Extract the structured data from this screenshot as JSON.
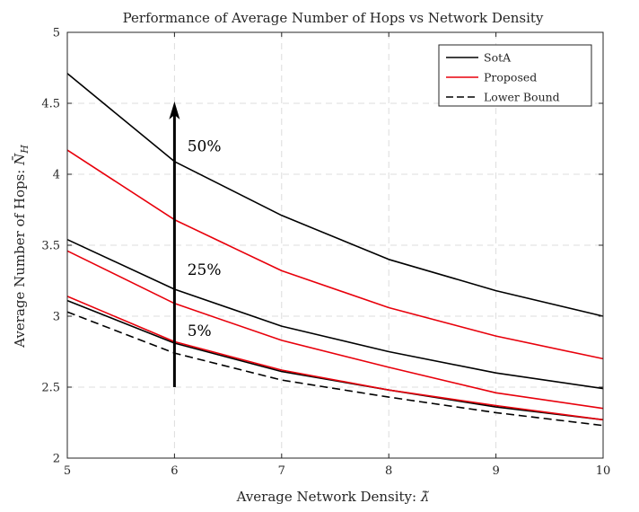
{
  "chart_data": {
    "type": "line",
    "title": "Performance of Average Number of Hops vs Network Density",
    "xlabel": "Average Network Density: ",
    "xlabel_symbol": "λ̃",
    "ylabel": "Average Number of Hops: ",
    "ylabel_symbol": "N̄",
    "ylabel_subscript": "H",
    "xlim": [
      5,
      10
    ],
    "ylim": [
      2,
      5
    ],
    "xticks": [
      5,
      6,
      7,
      8,
      9,
      10
    ],
    "yticks": [
      2,
      2.5,
      3,
      3.5,
      4,
      4.5,
      5
    ],
    "grid": true,
    "legend": {
      "position": "top-right",
      "entries": [
        {
          "label": "SotA",
          "color": "#000000",
          "dash": "solid"
        },
        {
          "label": "Proposed",
          "color": "#e8000b",
          "dash": "solid"
        },
        {
          "label": "Lower Bound",
          "color": "#000000",
          "dash": "dashed"
        }
      ]
    },
    "x": [
      5,
      6,
      7,
      8,
      9,
      10
    ],
    "series": [
      {
        "group": "SotA",
        "color": "#000000",
        "dash": "solid",
        "values": [
          4.71,
          4.09,
          3.71,
          3.4,
          3.18,
          3.0
        ]
      },
      {
        "group": "Proposed",
        "color": "#e8000b",
        "dash": "solid",
        "values": [
          4.17,
          3.68,
          3.32,
          3.06,
          2.86,
          2.7
        ]
      },
      {
        "group": "SotA",
        "color": "#000000",
        "dash": "solid",
        "values": [
          3.54,
          3.19,
          2.93,
          2.75,
          2.6,
          2.49
        ]
      },
      {
        "group": "Proposed",
        "color": "#e8000b",
        "dash": "solid",
        "values": [
          3.46,
          3.09,
          2.83,
          2.64,
          2.46,
          2.35
        ]
      },
      {
        "group": "SotA",
        "color": "#000000",
        "dash": "solid",
        "values": [
          3.11,
          2.81,
          2.61,
          2.48,
          2.36,
          2.27
        ]
      },
      {
        "group": "Proposed",
        "color": "#e8000b",
        "dash": "solid",
        "values": [
          3.14,
          2.82,
          2.62,
          2.48,
          2.37,
          2.27
        ]
      },
      {
        "group": "Lower Bound",
        "color": "#000000",
        "dash": "dashed",
        "values": [
          3.03,
          2.74,
          2.55,
          2.43,
          2.32,
          2.23
        ]
      }
    ],
    "annotations": {
      "arrow": {
        "x": 6,
        "y_start": 2.5,
        "y_end": 4.5
      },
      "labels": [
        {
          "text": "50%",
          "x": 6.12,
          "y": 4.2
        },
        {
          "text": "25%",
          "x": 6.12,
          "y": 3.33
        },
        {
          "text": "5%",
          "x": 6.12,
          "y": 2.9
        }
      ]
    }
  }
}
